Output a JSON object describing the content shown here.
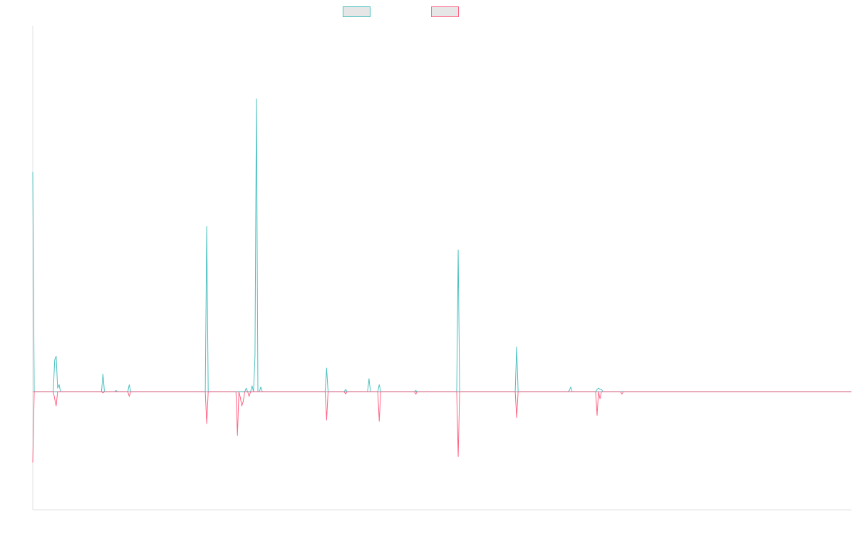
{
  "chart_data": {
    "type": "line",
    "title": "",
    "xlabel": "",
    "ylabel": "",
    "ylim": [
      -1,
      3.1
    ],
    "grid": false,
    "legend_position": "top-center",
    "colors": [
      "#4bc0c0",
      "#ff6384"
    ],
    "series": [
      {
        "name": "",
        "color": "#4bc0c0",
        "points": [
          [
            0,
            1.86
          ],
          [
            2,
            0
          ],
          [
            28,
            0
          ],
          [
            30,
            0.27
          ],
          [
            32,
            0.3
          ],
          [
            34,
            0.03
          ],
          [
            36,
            0.06
          ],
          [
            38,
            0
          ],
          [
            40,
            0
          ],
          [
            94,
            0
          ],
          [
            96,
            0.15
          ],
          [
            98,
            0
          ],
          [
            112,
            0
          ],
          [
            114,
            0.01
          ],
          [
            116,
            0
          ],
          [
            130,
            0
          ],
          [
            132,
            0.06
          ],
          [
            134,
            0
          ],
          [
            160,
            0
          ],
          [
            236,
            0
          ],
          [
            238,
            1.4
          ],
          [
            240,
            0
          ],
          [
            244,
            0
          ],
          [
            290,
            0
          ],
          [
            292,
            0.03
          ],
          [
            294,
            0
          ],
          [
            298,
            0
          ],
          [
            300,
            0.05
          ],
          [
            302,
            0
          ],
          [
            304,
            0.3
          ],
          [
            306,
            2.48
          ],
          [
            308,
            0
          ],
          [
            310,
            0
          ],
          [
            312,
            0.04
          ],
          [
            314,
            0
          ],
          [
            400,
            0
          ],
          [
            402,
            0.2
          ],
          [
            404,
            0
          ],
          [
            426,
            0
          ],
          [
            428,
            0.02
          ],
          [
            430,
            0
          ],
          [
            458,
            0
          ],
          [
            460,
            0.11
          ],
          [
            462,
            0
          ],
          [
            472,
            0
          ],
          [
            474,
            0.06
          ],
          [
            476,
            0
          ],
          [
            522,
            0
          ],
          [
            524,
            0.01
          ],
          [
            526,
            0
          ],
          [
            580,
            0
          ],
          [
            582,
            1.2
          ],
          [
            584,
            0
          ],
          [
            660,
            0
          ],
          [
            662,
            0.38
          ],
          [
            664,
            0
          ],
          [
            732,
            0
          ],
          [
            734,
            0.01
          ],
          [
            736,
            0.04
          ],
          [
            738,
            0
          ],
          [
            770,
            0
          ],
          [
            772,
            0.02
          ],
          [
            774,
            0.03
          ],
          [
            776,
            0.02
          ],
          [
            778,
            0.02
          ],
          [
            780,
            0
          ],
          [
            802,
            0
          ],
          [
            804,
            0
          ],
          [
            806,
            0
          ],
          [
            1120,
            0
          ]
        ]
      },
      {
        "name": "",
        "color": "#ff6384",
        "points": [
          [
            0,
            -0.6
          ],
          [
            2,
            0
          ],
          [
            28,
            0
          ],
          [
            30,
            -0.06
          ],
          [
            32,
            -0.12
          ],
          [
            34,
            0
          ],
          [
            40,
            0
          ],
          [
            94,
            0
          ],
          [
            96,
            -0.01
          ],
          [
            98,
            0
          ],
          [
            130,
            0
          ],
          [
            132,
            -0.04
          ],
          [
            134,
            0
          ],
          [
            160,
            0
          ],
          [
            236,
            0
          ],
          [
            238,
            -0.27
          ],
          [
            240,
            0
          ],
          [
            278,
            0
          ],
          [
            280,
            -0.37
          ],
          [
            282,
            0
          ],
          [
            284,
            -0.05
          ],
          [
            286,
            -0.12
          ],
          [
            288,
            -0.08
          ],
          [
            290,
            0
          ],
          [
            294,
            0
          ],
          [
            296,
            -0.04
          ],
          [
            298,
            0
          ],
          [
            400,
            0
          ],
          [
            402,
            -0.24
          ],
          [
            404,
            0
          ],
          [
            426,
            0
          ],
          [
            428,
            -0.02
          ],
          [
            430,
            0
          ],
          [
            472,
            0
          ],
          [
            474,
            -0.25
          ],
          [
            476,
            0
          ],
          [
            522,
            0
          ],
          [
            524,
            -0.02
          ],
          [
            526,
            0
          ],
          [
            580,
            0
          ],
          [
            582,
            -0.55
          ],
          [
            584,
            0
          ],
          [
            660,
            0
          ],
          [
            662,
            -0.22
          ],
          [
            664,
            0
          ],
          [
            770,
            0
          ],
          [
            772,
            -0.2
          ],
          [
            774,
            0
          ],
          [
            776,
            -0.06
          ],
          [
            778,
            0
          ],
          [
            804,
            0
          ],
          [
            806,
            -0.02
          ],
          [
            808,
            0
          ],
          [
            1120,
            0
          ]
        ]
      }
    ]
  }
}
